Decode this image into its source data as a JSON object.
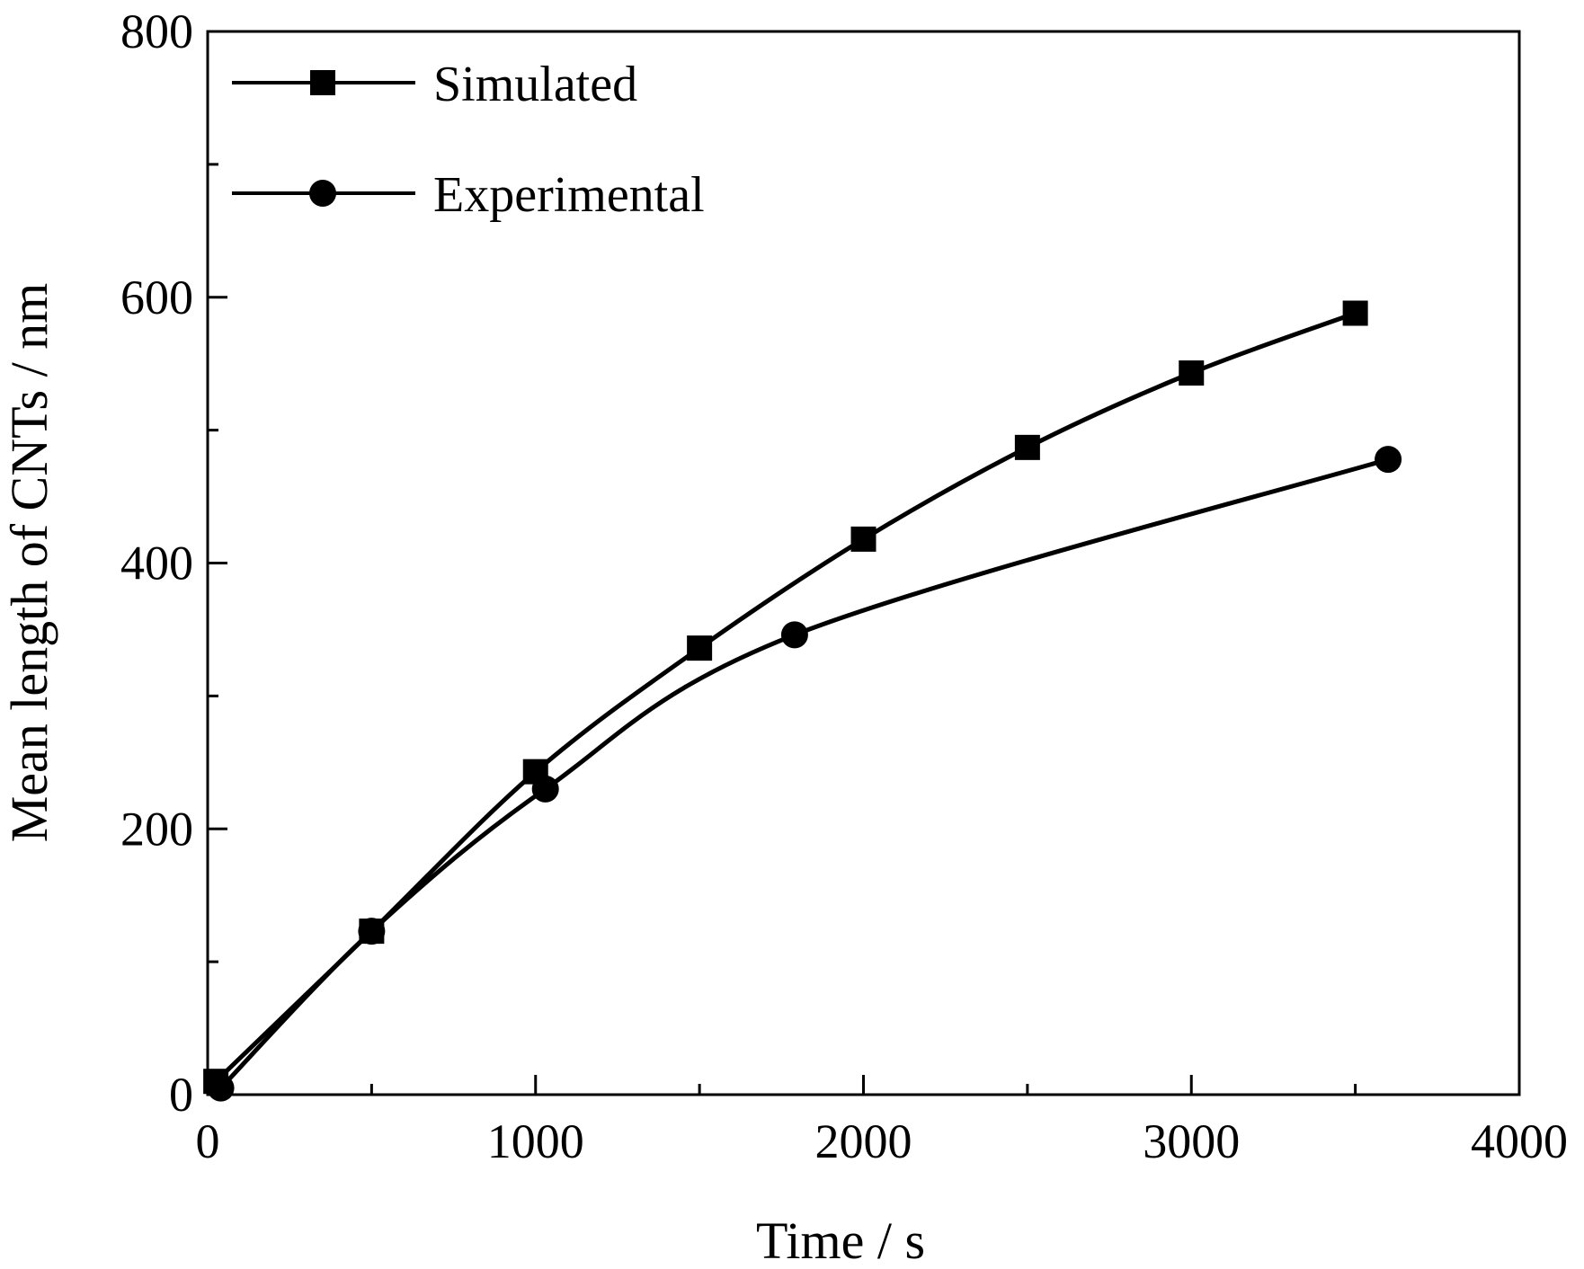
{
  "chart_data": {
    "type": "line",
    "title": "",
    "xlabel": "Time / s",
    "ylabel": "Mean length of CNTs / nm",
    "xlim": [
      0,
      4000
    ],
    "ylim": [
      0,
      800
    ],
    "x_ticks": [
      0,
      1000,
      2000,
      3000,
      4000
    ],
    "x_tick_labels": [
      "0",
      "1000",
      "2000",
      "3000",
      "4000"
    ],
    "x_minor_ticks": [
      500,
      1500,
      2500,
      3500
    ],
    "y_ticks": [
      0,
      200,
      400,
      600,
      800
    ],
    "y_tick_labels": [
      "0",
      "200",
      "400",
      "600",
      "800"
    ],
    "y_minor_ticks": [
      100,
      300,
      500,
      700
    ],
    "grid": false,
    "legend_position": "top-left",
    "series": [
      {
        "name": "Simulated",
        "marker": "square",
        "color": "#000000",
        "x": [
          25,
          500,
          1000,
          1500,
          2000,
          2500,
          3000,
          3500
        ],
        "y": [
          10,
          123,
          243,
          336,
          418,
          487,
          543,
          588
        ]
      },
      {
        "name": "Experimental",
        "marker": "circle",
        "color": "#000000",
        "x": [
          40,
          500,
          1030,
          1790,
          3600
        ],
        "y": [
          5,
          123,
          230,
          346,
          478
        ]
      }
    ]
  }
}
